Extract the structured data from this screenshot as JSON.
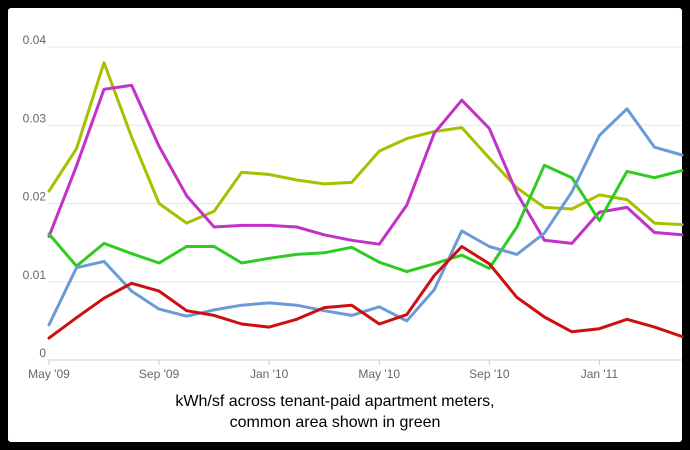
{
  "caption": {
    "line1": "kWh/sf across tenant-paid apartment meters,",
    "line2": "common area shown in green"
  },
  "chart_data": {
    "type": "line",
    "title": "",
    "xlabel": "",
    "ylabel": "",
    "x": [
      "2009-05",
      "2009-06",
      "2009-07",
      "2009-08",
      "2009-09",
      "2009-10",
      "2009-11",
      "2009-12",
      "2010-01",
      "2010-02",
      "2010-03",
      "2010-04",
      "2010-05",
      "2010-06",
      "2010-07",
      "2010-08",
      "2010-09",
      "2010-10",
      "2010-11",
      "2010-12",
      "2011-01",
      "2011-02",
      "2011-03",
      "2011-04"
    ],
    "x_ticks": [
      "May '09",
      "Sep '09",
      "Jan '10",
      "May '10",
      "Sep '10",
      "Jan '11"
    ],
    "x_tick_months": [
      "2009-05",
      "2009-09",
      "2010-01",
      "2010-05",
      "2010-09",
      "2011-01"
    ],
    "y_ticks": [
      "0",
      "0.01",
      "0.02",
      "0.03",
      "0.04"
    ],
    "ylim": [
      0,
      0.04
    ],
    "grid": "horizontal",
    "legend": "none",
    "series": [
      {
        "color": "#a8c000",
        "values": [
          0.0216,
          0.027,
          0.038,
          0.0285,
          0.02,
          0.0175,
          0.019,
          0.024,
          0.0237,
          0.023,
          0.0225,
          0.0227,
          0.0267,
          0.0283,
          0.0292,
          0.0297,
          0.0258,
          0.022,
          0.0195,
          0.0193,
          0.0211,
          0.0205,
          0.0175,
          0.0173
        ]
      },
      {
        "color": "#c232c9",
        "values": [
          0.0158,
          0.0248,
          0.0346,
          0.0351,
          0.0273,
          0.021,
          0.017,
          0.0172,
          0.0172,
          0.017,
          0.016,
          0.0153,
          0.0148,
          0.0198,
          0.029,
          0.0332,
          0.0296,
          0.0213,
          0.0153,
          0.0149,
          0.0189,
          0.0195,
          0.0163,
          0.016
        ]
      },
      {
        "color": "#2ecc20",
        "values": [
          0.0161,
          0.012,
          0.0149,
          0.0136,
          0.0124,
          0.0145,
          0.0145,
          0.0124,
          0.013,
          0.0135,
          0.0137,
          0.0144,
          0.0125,
          0.0113,
          0.0123,
          0.0134,
          0.0117,
          0.017,
          0.0249,
          0.0233,
          0.0178,
          0.0241,
          0.0233,
          0.0242
        ]
      },
      {
        "color": "#6a9bd8",
        "values": [
          0.0045,
          0.0118,
          0.0126,
          0.0088,
          0.0065,
          0.0056,
          0.0064,
          0.007,
          0.0073,
          0.007,
          0.0063,
          0.0057,
          0.0068,
          0.005,
          0.009,
          0.0165,
          0.0145,
          0.0135,
          0.0162,
          0.0215,
          0.0287,
          0.0321,
          0.0272,
          0.0262
        ]
      },
      {
        "color": "#cc1010",
        "values": [
          0.0028,
          0.0054,
          0.0079,
          0.0098,
          0.0088,
          0.0063,
          0.0057,
          0.0046,
          0.0042,
          0.0052,
          0.0067,
          0.007,
          0.0046,
          0.0058,
          0.0108,
          0.0145,
          0.0123,
          0.008,
          0.0055,
          0.0036,
          0.004,
          0.0052,
          0.0042,
          0.003
        ]
      }
    ]
  }
}
